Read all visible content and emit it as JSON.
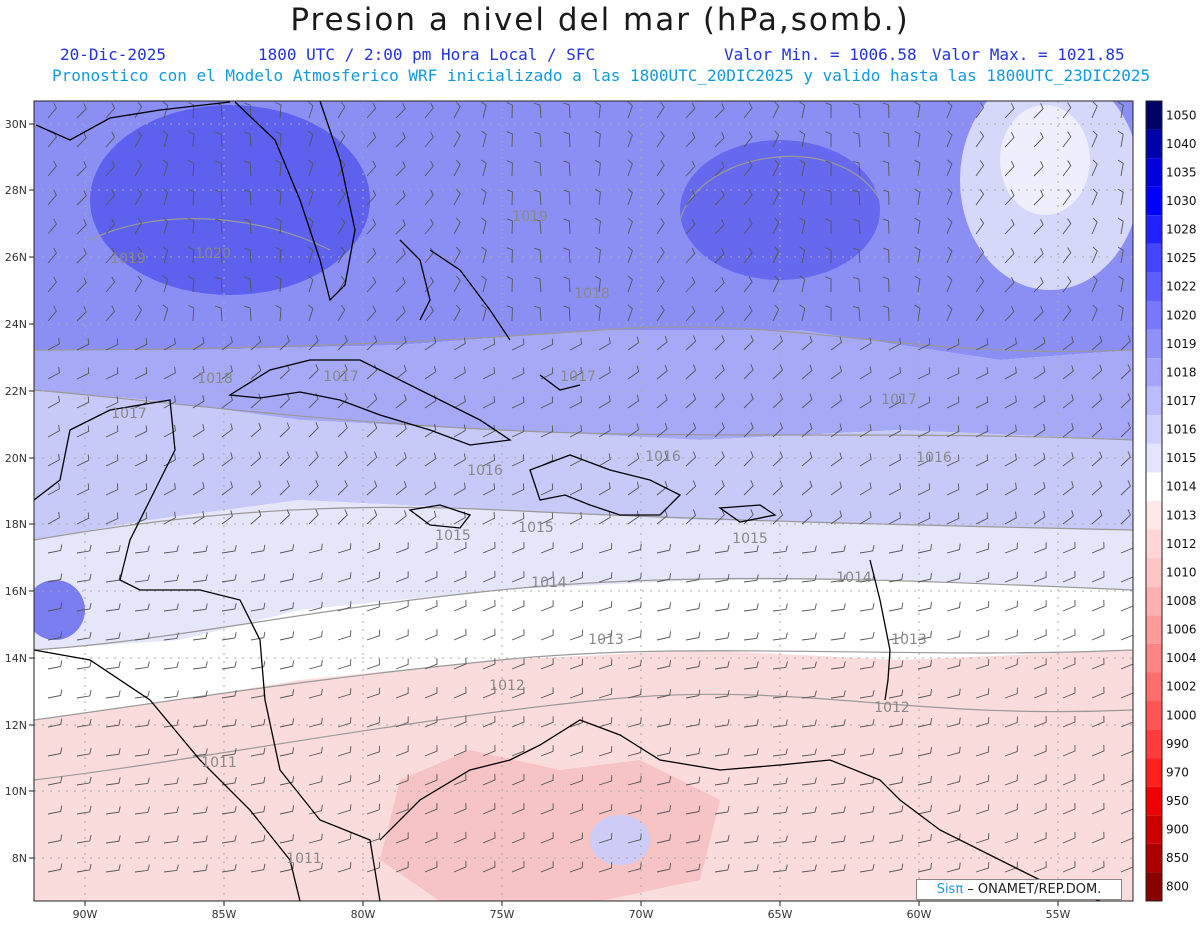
{
  "header": {
    "title": "Presion a nivel del mar (hPa,somb.)",
    "date": "20-Dic-2025",
    "time": "1800 UTC / 2:00 pm Hora Local / SFC",
    "min": "Valor Min. = 1006.58",
    "max": "Valor Max. = 1021.85",
    "info": "Pronostico con el Modelo Atmosferico WRF inicializado a las 1800UTC_20DIC2025 y valido hasta las  1800UTC_23DIC2025"
  },
  "map": {
    "lon_range": [
      -92,
      -52
    ],
    "lat_range": [
      6.8,
      30.6
    ],
    "lon_ticks": [
      "90W",
      "85W",
      "80W",
      "75W",
      "70W",
      "65W",
      "60W",
      "55W"
    ],
    "lat_ticks": [
      "30N",
      "28N",
      "26N",
      "24N",
      "22N",
      "20N",
      "18N",
      "16N",
      "14N",
      "12N",
      "10N",
      "8N"
    ],
    "contour_labels": [
      "1020",
      "1019",
      "1019",
      "1018",
      "1018",
      "1017",
      "1017",
      "1017",
      "1017",
      "1016",
      "1016",
      "1016",
      "1015",
      "1015",
      "1015",
      "1014",
      "1014",
      "1013",
      "1013",
      "1012",
      "1012",
      "1011",
      "1011"
    ],
    "colors": {
      "high": "#5b5cf0",
      "mid": "#a8acf6",
      "neutral": "#ffffff",
      "low": "#f6c6c6",
      "coast": "#000000",
      "barb": "#555555"
    }
  },
  "colorbar": {
    "labels": [
      "1050",
      "1040",
      "1035",
      "1030",
      "1028",
      "1025",
      "1022",
      "1020",
      "1019",
      "1018",
      "1017",
      "1016",
      "1015",
      "1014",
      "1013",
      "1012",
      "1010",
      "1008",
      "1006",
      "1004",
      "1002",
      "1000",
      "990",
      "970",
      "950",
      "900",
      "850",
      "800"
    ],
    "colors": [
      "#000066",
      "#0000aa",
      "#0000dd",
      "#0000ff",
      "#2222ff",
      "#4444ff",
      "#5c5cff",
      "#7777ff",
      "#9090ff",
      "#a5a5ff",
      "#bbbbff",
      "#d0d0ff",
      "#e4e4ff",
      "#ffffff",
      "#ffe8e8",
      "#ffd6d6",
      "#ffc4c4",
      "#ffb0b0",
      "#ff9b9b",
      "#ff8585",
      "#ff6e6e",
      "#ff5555",
      "#ff3b3b",
      "#ff1f1f",
      "#ee0000",
      "#cc0000",
      "#aa0000",
      "#880000"
    ]
  },
  "credit": {
    "brand": "Sisπ",
    "org": " – ONAMET/REP.DOM."
  }
}
